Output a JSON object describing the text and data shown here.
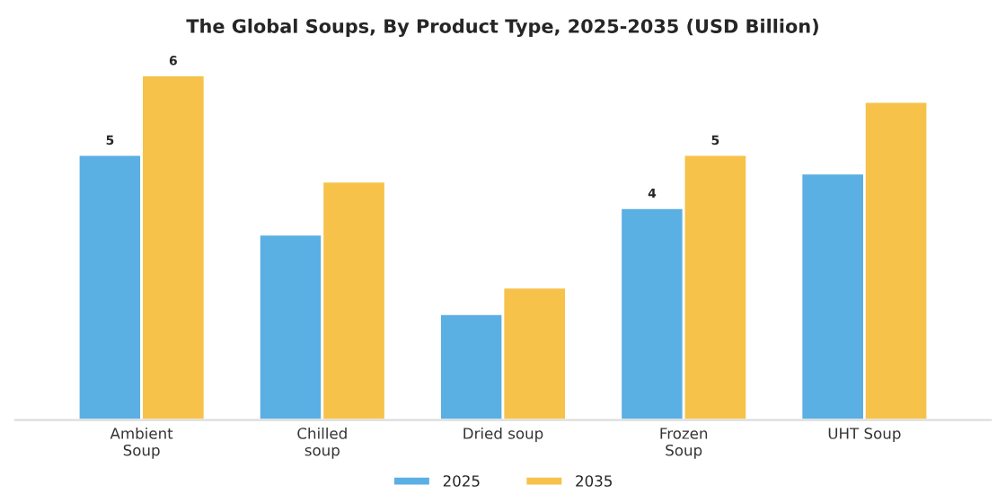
{
  "chart_data": {
    "type": "bar",
    "title": "The Global Soups, By Product Type, 2025-2035 (USD Billion)",
    "categories": [
      "Ambient\nSoup",
      "Chilled\nsoup",
      "Dried soup",
      "Frozen\nSoup",
      "UHT Soup"
    ],
    "series": [
      {
        "name": "2025",
        "color": "#5aafe3",
        "values": [
          5.0,
          3.5,
          2.0,
          4.0,
          4.65
        ],
        "value_labels": [
          "5",
          null,
          null,
          "4",
          null
        ]
      },
      {
        "name": "2035",
        "color": "#f6c24a",
        "values": [
          6.5,
          4.5,
          2.5,
          5.0,
          6.0
        ],
        "value_labels": [
          "6",
          null,
          null,
          "5",
          null
        ]
      }
    ],
    "tick_labels": "x",
    "grid": false,
    "legend": "bottom"
  }
}
